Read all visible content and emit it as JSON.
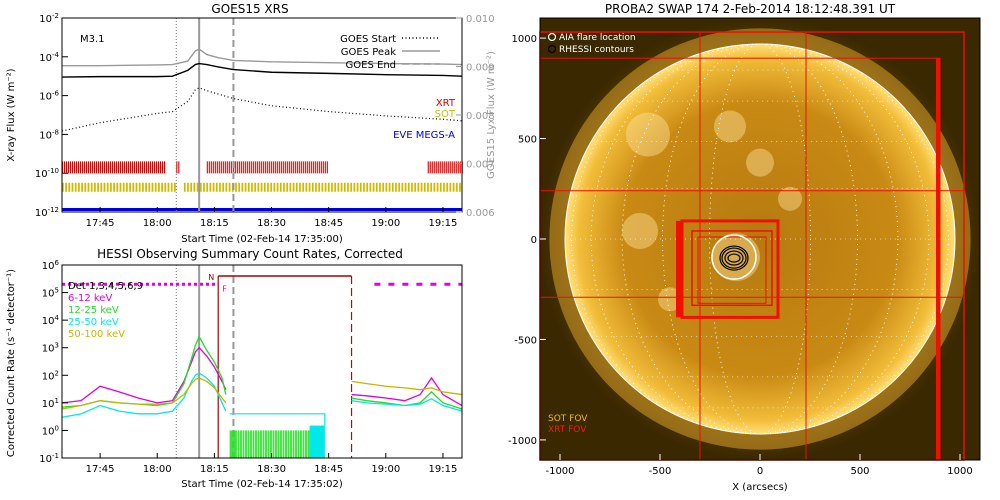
{
  "goes_panel": {
    "title": "GOES15 XRS",
    "flare_class": "M3.1",
    "xlabel": "Start Time (02-Feb-14 17:35:00)",
    "ylabel_left": "X-ray Flux (W m⁻²)",
    "ylabel_right": "GOES15 Lyx Flux (W m⁻²)",
    "legend": [
      {
        "label": "GOES Start",
        "style": "dotted"
      },
      {
        "label": "GOES Peak",
        "style": "solid"
      },
      {
        "label": "GOES End",
        "style": "dashed"
      }
    ],
    "instrument_labels": [
      {
        "label": "XRT",
        "color": "#dd0000"
      },
      {
        "label": "SOT",
        "color": "#d4b800"
      },
      {
        "label": "EVE MEGS-A",
        "color": "#0000dd"
      }
    ]
  },
  "hessi_panel": {
    "title": "HESSI Observing Summary Count Rates, Corrected",
    "xlabel": "Start Time (02-Feb-14 17:35:02)",
    "ylabel": "Corrected Count Rate (s⁻¹ detector⁻¹)",
    "detectors_label": "Det 1,3,4,5,6,9",
    "flag_n": "N",
    "flag_f": "F",
    "legend": [
      {
        "label": "6-12 keV",
        "color": "#e000e0"
      },
      {
        "label": "12-25 keV",
        "color": "#22dd22"
      },
      {
        "label": "25-50 keV",
        "color": "#00e8e8"
      },
      {
        "label": "50-100 keV",
        "color": "#c8b400"
      }
    ]
  },
  "swap_panel": {
    "title": "PROBA2 SWAP 174   2-Feb-2014 18:12:48.391 UT",
    "xlabel": "X (arcsecs)",
    "legend": [
      {
        "label": "AIA flare location"
      },
      {
        "label": "RHESSI contours"
      }
    ],
    "fov_labels": [
      {
        "label": "SOT FOV",
        "color": "#e8c000"
      },
      {
        "label": "XRT FOV",
        "color": "#ee2200"
      }
    ]
  },
  "chart_data": [
    {
      "type": "line",
      "title": "GOES15 XRS",
      "xlabel": "Start Time (02-Feb-14 17:35:00)",
      "ylabel": "X-ray Flux (W m-2)",
      "y_scale": "log",
      "xlim": [
        "17:35",
        "19:20"
      ],
      "ylim": [
        1e-12,
        0.01
      ],
      "ylim_right": [
        0.006,
        0.01
      ],
      "x_ticks": [
        "17:45",
        "18:00",
        "18:15",
        "18:30",
        "18:45",
        "19:00",
        "19:15"
      ],
      "y_ticks": [
        "10^-12",
        "10^-10",
        "10^-8",
        "10^-6",
        "10^-4",
        "10^-2"
      ],
      "y_ticks_right": [
        "0.006",
        "0.007",
        "0.008",
        "0.009",
        "0.010"
      ],
      "goes_start": "18:05",
      "goes_peak": "18:11",
      "goes_end": "18:20",
      "x": [
        "17:35",
        "17:45",
        "18:00",
        "18:04",
        "18:08",
        "18:10",
        "18:11",
        "18:13",
        "18:16",
        "18:20",
        "18:30",
        "18:45",
        "19:00",
        "19:15",
        "19:20"
      ],
      "series": [
        {
          "name": "",
          "color": "#000000",
          "style": "solid",
          "values": [
            9e-06,
            9.5e-06,
            9.5e-06,
            1e-05,
            2e-05,
            4e-05,
            4.5e-05,
            4e-05,
            3e-05,
            2.2e-05,
            1.6e-05,
            1.4e-05,
            1.2e-05,
            1.1e-05,
            1e-05
          ]
        },
        {
          "name": "",
          "color": "#999999",
          "style": "solid",
          "values": [
            3.5e-05,
            3.5e-05,
            3.8e-05,
            4e-05,
            6e-05,
            0.0002,
            0.00025,
            0.00013,
            9e-05,
            6.5e-05,
            5.5e-05,
            5e-05,
            4.5e-05,
            4.2e-05,
            4e-05
          ]
        },
        {
          "name": "",
          "color": "#000000",
          "style": "dotted",
          "values": [
            1.5e-08,
            4e-08,
            1.2e-07,
            1.5e-07,
            5e-07,
            2e-06,
            2.5e-06,
            1.8e-06,
            1.2e-06,
            7e-07,
            3e-07,
            1.5e-07,
            9e-08,
            6e-08,
            5e-08
          ]
        }
      ],
      "xrt_intervals": [
        [
          "17:35",
          "18:02"
        ],
        [
          "18:05",
          "18:06"
        ],
        [
          "18:13",
          "18:45"
        ],
        [
          "19:11",
          "19:20"
        ]
      ],
      "sot_intervals": [
        [
          "17:35",
          "18:05"
        ],
        [
          "18:07",
          "19:20"
        ]
      ],
      "eve_interval": [
        "17:35",
        "19:20"
      ]
    },
    {
      "type": "line",
      "title": "HESSI Observing Summary Count Rates, Corrected",
      "xlabel": "Start Time (02-Feb-14 17:35:02)",
      "ylabel": "Corrected Count Rate (s-1 detector-1)",
      "y_scale": "log",
      "xlim": [
        "17:35",
        "19:20"
      ],
      "ylim": [
        0.1,
        1000000.0
      ],
      "x_ticks": [
        "17:45",
        "18:00",
        "18:15",
        "18:30",
        "18:45",
        "19:00",
        "19:15"
      ],
      "y_ticks": [
        "10^-1",
        "10^0",
        "10^1",
        "10^2",
        "10^3",
        "10^4",
        "10^5",
        "10^6"
      ],
      "night_start": "18:16",
      "night_end": "18:51",
      "goes_start": "18:05",
      "goes_peak": "18:11",
      "goes_end": "18:20",
      "x": [
        "17:35",
        "17:40",
        "17:45",
        "17:50",
        "17:55",
        "18:00",
        "18:04",
        "18:07",
        "18:09",
        "18:10",
        "18:11",
        "18:13",
        "18:15",
        "18:17",
        "18:18"
      ],
      "series": [
        {
          "name": "6-12 keV",
          "color": "#e000e0",
          "values": [
            10,
            12,
            40,
            25,
            15,
            10,
            12,
            60,
            300,
            700,
            1000,
            500,
            200,
            60,
            30
          ]
        },
        {
          "name": "12-25 keV",
          "color": "#22dd22",
          "values": [
            7,
            8,
            12,
            10,
            9,
            8,
            10,
            50,
            400,
            1200,
            2500,
            800,
            300,
            80,
            20
          ]
        },
        {
          "name": "25-50 keV",
          "color": "#00e8e8",
          "values": [
            3,
            4,
            8,
            5,
            4,
            4,
            5,
            15,
            60,
            100,
            120,
            80,
            40,
            10,
            5
          ]
        },
        {
          "name": "50-100 keV",
          "color": "#c8b400",
          "values": [
            6,
            8,
            12,
            10,
            9,
            9,
            10,
            20,
            50,
            70,
            80,
            60,
            35,
            15,
            10
          ]
        }
      ],
      "after_night": {
        "x": [
          "18:51",
          "18:55",
          "19:00",
          "19:05",
          "19:09",
          "19:12",
          "19:15",
          "19:20"
        ],
        "series": [
          {
            "name": "6-12 keV",
            "values": [
              20,
              18,
              15,
              12,
              20,
              80,
              20,
              8
            ]
          },
          {
            "name": "12-25 keV",
            "values": [
              15,
              12,
              10,
              8,
              10,
              25,
              10,
              6
            ]
          },
          {
            "name": "25-50 keV",
            "values": [
              12,
              10,
              9,
              8,
              9,
              14,
              8,
              5
            ]
          },
          {
            "name": "50-100 keV",
            "values": [
              60,
              50,
              40,
              35,
              30,
              35,
              25,
              20
            ]
          }
        ]
      },
      "saa_interval": [
        "17:35",
        "18:16"
      ]
    },
    {
      "type": "scatter",
      "title": "PROBA2 SWAP 174   2-Feb-2014 18:12:48.391 UT",
      "xlabel": "X (arcsecs)",
      "xlim": [
        -1100,
        1100
      ],
      "ylim": [
        -1100,
        1100
      ],
      "x_ticks": [
        -1000,
        -500,
        0,
        500,
        1000
      ],
      "y_ticks": [
        -1000,
        -500,
        0,
        500,
        1000
      ],
      "solar_radius": 975,
      "flare_location": [
        -130,
        -90
      ],
      "grid_lines_x": [
        -300,
        230
      ],
      "grid_lines_y": [
        -290,
        240
      ]
    }
  ]
}
